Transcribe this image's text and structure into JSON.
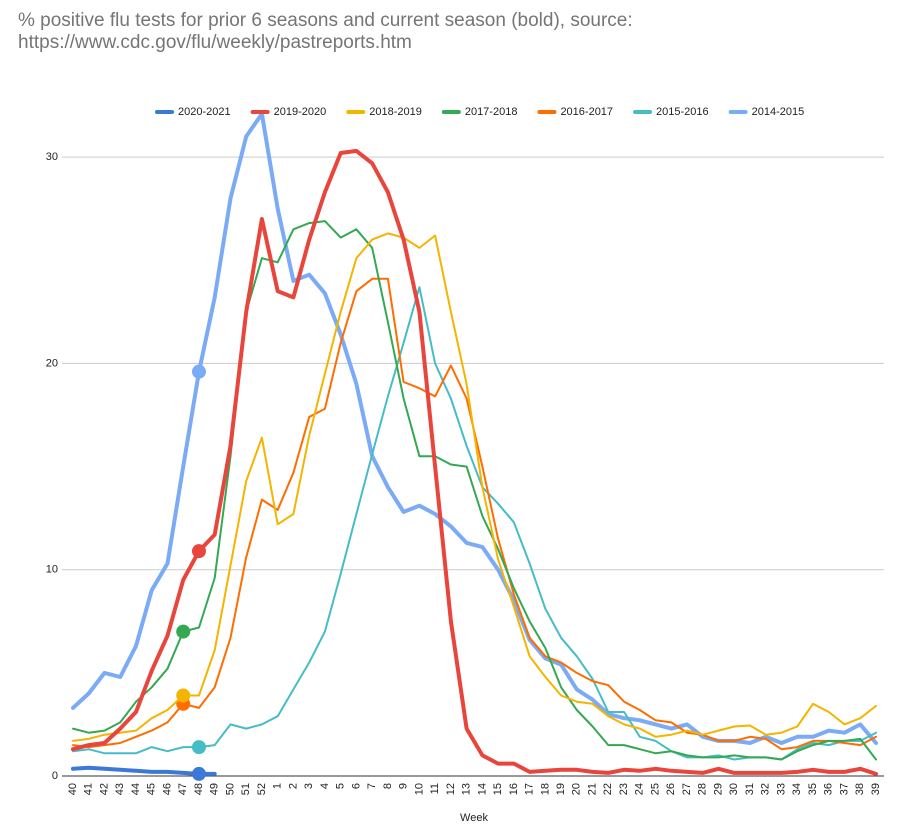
{
  "chart_data": {
    "type": "line",
    "title": "% positive flu tests for prior 6 seasons and current season (bold), source: https://www.cdc.gov/flu/weekly/pastreports.htm",
    "x_label": "Week",
    "categories": [
      "40",
      "41",
      "42",
      "43",
      "44",
      "45",
      "46",
      "47",
      "48",
      "49",
      "50",
      "51",
      "52",
      "1",
      "2",
      "3",
      "4",
      "5",
      "6",
      "7",
      "8",
      "9",
      "10",
      "11",
      "12",
      "13",
      "14",
      "15",
      "16",
      "17",
      "18",
      "19",
      "20",
      "21",
      "22",
      "23",
      "24",
      "25",
      "26",
      "27",
      "28",
      "29",
      "30",
      "31",
      "32",
      "33",
      "34",
      "35",
      "36",
      "37",
      "38",
      "39"
    ],
    "ylim": [
      0,
      33
    ],
    "yticks": [
      0,
      10,
      20,
      30
    ],
    "grid": true,
    "legend": "top",
    "series": [
      {
        "name": "2020-2021",
        "color": "#3c78d8",
        "bold": true,
        "marker_index": 8,
        "values": [
          0.35,
          0.4,
          0.35,
          0.3,
          0.25,
          0.2,
          0.2,
          0.15,
          0.1,
          0.1,
          null,
          null,
          null,
          null,
          null,
          null,
          null,
          null,
          null,
          null,
          null,
          null,
          null,
          null,
          null,
          null,
          null,
          null,
          null,
          null,
          null,
          null,
          null,
          null,
          null,
          null,
          null,
          null,
          null,
          null,
          null,
          null,
          null,
          null,
          null,
          null,
          null,
          null,
          null,
          null,
          null,
          null
        ]
      },
      {
        "name": "2019-2020",
        "color": "#e8453c",
        "bold": true,
        "marker_index": 8,
        "values": [
          1.3,
          1.5,
          1.6,
          2.3,
          3.1,
          5.1,
          6.8,
          9.5,
          10.9,
          11.7,
          16,
          22.5,
          27,
          23.5,
          23.2,
          26,
          28.3,
          30.2,
          30.3,
          29.7,
          28.3,
          26.0,
          22.5,
          15,
          7.5,
          2.3,
          1.0,
          0.6,
          0.6,
          0.2,
          0.25,
          0.3,
          0.3,
          0.2,
          0.15,
          0.3,
          0.25,
          0.35,
          0.25,
          0.2,
          0.15,
          0.35,
          0.15,
          0.15,
          0.15,
          0.15,
          0.2,
          0.3,
          0.2,
          0.2,
          0.35,
          0.1
        ]
      },
      {
        "name": "2018-2019",
        "color": "#f4b400",
        "bold": false,
        "marker_index": 7,
        "values": [
          1.7,
          1.8,
          2.0,
          2.1,
          2.2,
          2.8,
          3.2,
          3.9,
          3.9,
          6.1,
          10.2,
          14.3,
          16.4,
          12.2,
          12.7,
          16.5,
          19.5,
          22.5,
          25.1,
          26.0,
          26.3,
          26.1,
          25.6,
          26.2,
          22.5,
          19,
          14,
          10.5,
          8.2,
          5.8,
          4.8,
          3.9,
          3.6,
          3.5,
          2.9,
          2.5,
          2.3,
          1.9,
          2.0,
          2.2,
          2.0,
          2.2,
          2.4,
          2.45,
          2.0,
          2.1,
          2.4,
          3.5,
          3.1,
          2.5,
          2.8,
          3.4
        ]
      },
      {
        "name": "2017-2018",
        "color": "#34a853",
        "bold": false,
        "marker_index": 7,
        "values": [
          2.3,
          2.1,
          2.2,
          2.6,
          3.6,
          4.3,
          5.2,
          7.0,
          7.2,
          9.6,
          15.5,
          22.5,
          25.1,
          24.9,
          26.5,
          26.8,
          26.9,
          26.1,
          26.5,
          25.6,
          22,
          18.3,
          15.5,
          15.5,
          15.1,
          15.0,
          12.6,
          11,
          9.1,
          7.5,
          6.2,
          4.3,
          3.2,
          2.4,
          1.5,
          1.5,
          1.3,
          1.1,
          1.2,
          1.0,
          0.9,
          0.9,
          1.0,
          0.9,
          0.9,
          0.8,
          1.2,
          1.5,
          1.7,
          1.7,
          1.8,
          0.8
        ]
      },
      {
        "name": "2016-2017",
        "color": "#ff6d01",
        "bold": false,
        "marker_index": 7,
        "values": [
          1.5,
          1.4,
          1.5,
          1.6,
          1.9,
          2.2,
          2.6,
          3.5,
          3.3,
          4.3,
          6.7,
          10.6,
          13.4,
          12.9,
          14.7,
          17.4,
          17.8,
          21.0,
          23.5,
          24.1,
          24.1,
          19.1,
          18.8,
          18.4,
          19.9,
          18.3,
          15.0,
          11.5,
          8.8,
          6.7,
          5.8,
          5.5,
          5.0,
          4.6,
          4.4,
          3.6,
          3.2,
          2.7,
          2.6,
          2.1,
          2.0,
          1.7,
          1.7,
          1.9,
          1.8,
          1.3,
          1.4,
          1.7,
          1.7,
          1.6,
          1.5,
          1.9
        ]
      },
      {
        "name": "2015-2016",
        "color": "#46bdc6",
        "bold": false,
        "marker_index": 8,
        "values": [
          1.2,
          1.3,
          1.1,
          1.1,
          1.1,
          1.4,
          1.2,
          1.4,
          1.4,
          1.5,
          2.5,
          2.3,
          2.5,
          2.9,
          4.2,
          5.5,
          7.0,
          9.8,
          12.7,
          15.6,
          18.4,
          21.0,
          23.7,
          20.0,
          18.3,
          16.0,
          14.0,
          13.2,
          12.3,
          10.3,
          8.1,
          6.7,
          5.8,
          4.7,
          3.1,
          3.1,
          1.9,
          1.7,
          1.2,
          0.9,
          0.9,
          1.0,
          0.8,
          0.9,
          0.9,
          0.8,
          1.3,
          1.6,
          1.5,
          1.7,
          1.7,
          2.1
        ]
      },
      {
        "name": "2014-2015",
        "color": "#7baaf7",
        "bold": true,
        "marker_index": 8,
        "values": [
          3.3,
          4.0,
          5.0,
          4.8,
          6.3,
          9.0,
          10.3,
          15.0,
          19.6,
          23.2,
          28.0,
          31.0,
          32.1,
          27.5,
          24.0,
          24.3,
          23.4,
          21.4,
          19.0,
          15.5,
          14.0,
          12.8,
          13.1,
          12.7,
          12.1,
          11.3,
          11.1,
          10.0,
          8.5,
          6.6,
          5.7,
          5.4,
          4.2,
          3.7,
          3.0,
          2.8,
          2.7,
          2.5,
          2.3,
          2.5,
          1.9,
          1.7,
          1.7,
          1.6,
          1.9,
          1.6,
          1.9,
          1.9,
          2.2,
          2.1,
          2.5,
          1.6
        ]
      }
    ]
  }
}
